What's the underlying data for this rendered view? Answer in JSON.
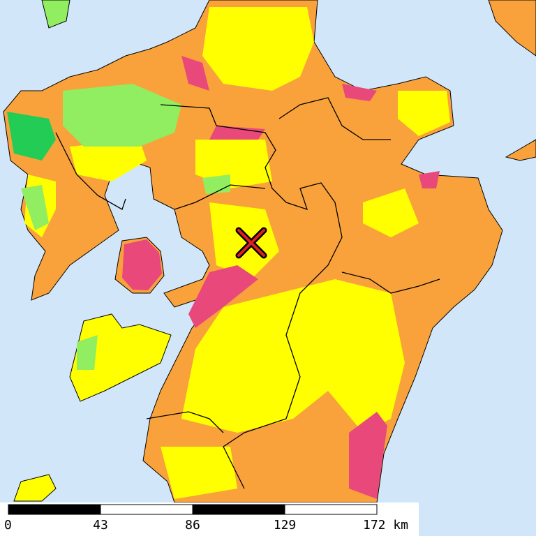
{
  "scale_bar": {
    "labels": [
      "0",
      "43",
      "86",
      "129",
      "172 km"
    ]
  }
}
